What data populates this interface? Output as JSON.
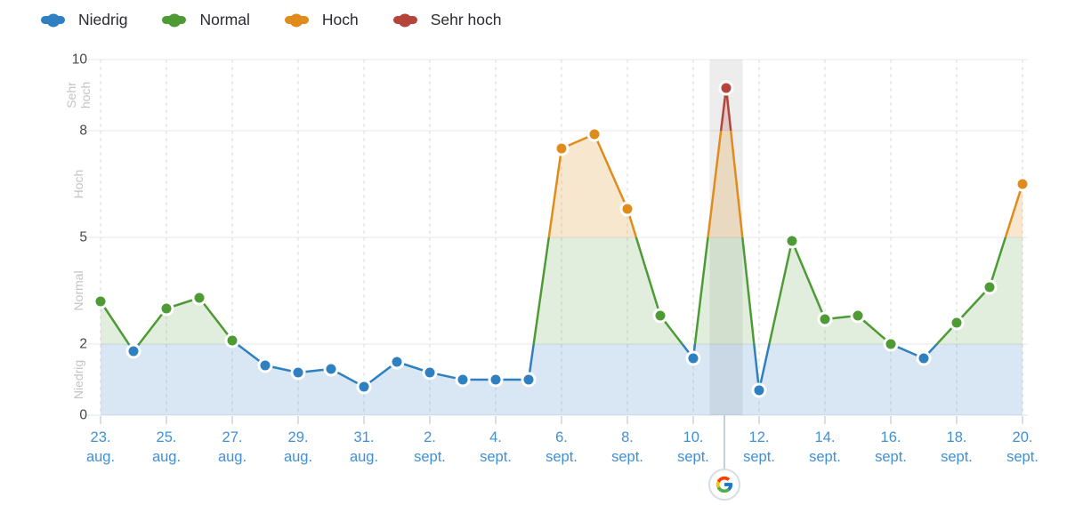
{
  "legend": {
    "items": [
      {
        "label": "Niedrig",
        "color": "#2f80c0"
      },
      {
        "label": "Normal",
        "color": "#4e9b36"
      },
      {
        "label": "Hoch",
        "color": "#e08c1c"
      },
      {
        "label": "Sehr hoch",
        "color": "#b5443b"
      }
    ]
  },
  "chart_data": {
    "type": "line",
    "title": "",
    "x": [
      "23. aug.",
      "24. aug.",
      "25. aug.",
      "26. aug.",
      "27. aug.",
      "28. aug.",
      "29. aug.",
      "30. aug.",
      "31. aug.",
      "1. sept.",
      "2. sept.",
      "3. sept.",
      "4. sept.",
      "5. sept.",
      "6. sept.",
      "7. sept.",
      "8. sept.",
      "9. sept.",
      "10. sept.",
      "11. sept.",
      "12. sept.",
      "13. sept.",
      "14. sept.",
      "15. sept.",
      "16. sept.",
      "17. sept.",
      "18. sept.",
      "19. sept.",
      "20. sept."
    ],
    "values": [
      3.2,
      1.8,
      3.0,
      3.3,
      2.1,
      1.4,
      1.2,
      1.3,
      0.8,
      1.5,
      1.2,
      1.0,
      1.0,
      1.0,
      7.5,
      7.9,
      5.8,
      2.8,
      1.6,
      9.2,
      0.7,
      4.9,
      2.7,
      2.8,
      2.0,
      1.6,
      2.6,
      3.6,
      6.5
    ],
    "ylim": [
      0,
      10
    ],
    "y_ticks": [
      0,
      2,
      5,
      8,
      10
    ],
    "x_label_every": 2,
    "grid": true,
    "legend_position": "top-left",
    "bands": [
      {
        "label": "Niedrig",
        "from": 0,
        "to": 2,
        "color": "#2f80c0",
        "fill_opacity": 0.19
      },
      {
        "label": "Normal",
        "from": 2,
        "to": 5,
        "color": "#4e9b36",
        "fill_opacity": 0.17
      },
      {
        "label": "Hoch",
        "from": 5,
        "to": 8,
        "color": "#e08c1c",
        "fill_opacity": 0.21
      },
      {
        "label": "Sehr hoch",
        "from": 8,
        "to": 10,
        "color": "#b5443b",
        "fill_opacity": 0.2
      }
    ],
    "highlight_index": 19,
    "highlighted_date": "11. sept.",
    "highlighted_value": 9.2,
    "source_icon": "google-logo"
  }
}
